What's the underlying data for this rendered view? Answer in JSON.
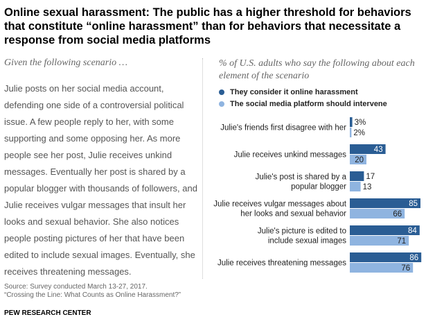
{
  "title": "Online sexual harassment: The public has a higher threshold for behaviors that constitute “online harassment” than for behaviors that necessitate a response from social media platforms",
  "left_subtitle": "Given the following scenario …",
  "scenario_text": "Julie posts on her social media account, defending one side of a controversial political issue. A few people reply to her, with some supporting and some opposing her. As more people see her post, Julie receives unkind messages. Eventually her post is shared by a popular blogger with thousands of followers, and Julie receives vulgar messages that insult her looks and sexual behavior. She also notices people posting pictures of her that have been edited to include sexual images. Eventually, she receives threatening messages.",
  "right_subtitle": "% of U.S. adults who say the following about each element of the scenario",
  "colors": {
    "series1": "#2a5d94",
    "series2": "#8fb4e0"
  },
  "chart_data": {
    "type": "bar",
    "orientation": "horizontal",
    "categories": [
      [
        "Julie's friends first disagree with her"
      ],
      [
        "Julie receives unkind messages"
      ],
      [
        "Julie's post is shared by a",
        "popular blogger"
      ],
      [
        "Julie receives vulgar messages about",
        "her looks and sexual behavior"
      ],
      [
        "Julie's picture is edited to",
        "include sexual images"
      ],
      [
        "Julie receives threatening messages"
      ]
    ],
    "series": [
      {
        "name": "They consider it online harassment",
        "values": [
          3,
          43,
          17,
          85,
          84,
          86
        ]
      },
      {
        "name": "The social media platform should intervene",
        "values": [
          2,
          20,
          13,
          66,
          71,
          76
        ]
      }
    ],
    "value_labels": [
      [
        "3%",
        "43",
        "17",
        "85",
        "84",
        "86"
      ],
      [
        "2%",
        "20",
        "13",
        "66",
        "71",
        "76"
      ]
    ],
    "xlim": [
      0,
      100
    ]
  },
  "footer": {
    "source": "Source: Survey conducted March 13-27, 2017.",
    "report": "“Crossing the Line: What Counts as Online Harassment?”",
    "org": "PEW RESEARCH CENTER"
  }
}
